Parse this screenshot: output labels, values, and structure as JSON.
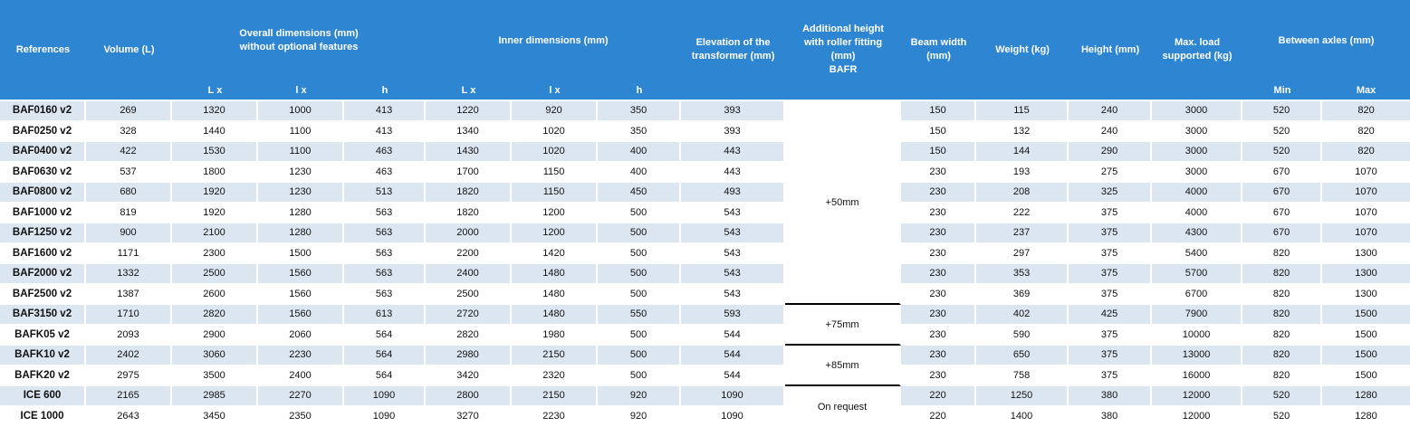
{
  "colors": {
    "header_bg": "#2E86D2",
    "stripe_row": "#DCE6F1",
    "plain_row": "#FFFFFF",
    "header_text": "#FFFFFF",
    "body_text": "#111111",
    "group_divider": "#000000"
  },
  "header": {
    "references": "References",
    "volume": "Volume (L)",
    "overall_dimensions": {
      "line1": "Overall dimensions (mm)",
      "line2": "without optional features"
    },
    "inner_dimensions": "Inner dimensions (mm)",
    "elevation": {
      "line1": "Elevation of the",
      "line2": "transformer (mm)"
    },
    "additional_height": {
      "line1": "Additional height",
      "line2": "with roller fitting",
      "line3": "(mm)",
      "line4": "BAFR"
    },
    "beam_width": {
      "line1": "Beam width",
      "line2": "(mm)"
    },
    "weight": "Weight (kg)",
    "height": "Height (mm)",
    "max_load": {
      "line1": "Max. load",
      "line2": "supported (kg)"
    },
    "between_axles": "Between axles (mm)",
    "sub_headers": {
      "overall_L": "L x",
      "overall_l": "l x",
      "overall_h": "h",
      "inner_L": "L x",
      "inner_l": "l x",
      "inner_h": "h",
      "min": "Min",
      "max": "Max"
    }
  },
  "value_column_keys": [
    "volume",
    "overall-L",
    "overall-l",
    "overall-h",
    "inner-L",
    "inner-l",
    "inner-h",
    "elevation",
    "beam-width",
    "weight",
    "height",
    "max-load",
    "axle-min",
    "axle-max"
  ],
  "rows": [
    {
      "reference": "BAF0160 v2",
      "values": [
        "269",
        "1320",
        "1000",
        "413",
        "1220",
        "920",
        "350",
        "393",
        "150",
        "115",
        "240",
        "3000",
        "520",
        "820"
      ]
    },
    {
      "reference": "BAF0250 v2",
      "values": [
        "328",
        "1440",
        "1100",
        "413",
        "1340",
        "1020",
        "350",
        "393",
        "150",
        "132",
        "240",
        "3000",
        "520",
        "820"
      ]
    },
    {
      "reference": "BAF0400 v2",
      "values": [
        "422",
        "1530",
        "1100",
        "463",
        "1430",
        "1020",
        "400",
        "443",
        "150",
        "144",
        "290",
        "3000",
        "520",
        "820"
      ]
    },
    {
      "reference": "BAF0630 v2",
      "values": [
        "537",
        "1800",
        "1230",
        "463",
        "1700",
        "1150",
        "400",
        "443",
        "230",
        "193",
        "275",
        "3000",
        "670",
        "1070"
      ]
    },
    {
      "reference": "BAF0800 v2",
      "values": [
        "680",
        "1920",
        "1230",
        "513",
        "1820",
        "1150",
        "450",
        "493",
        "230",
        "208",
        "325",
        "4000",
        "670",
        "1070"
      ]
    },
    {
      "reference": "BAF1000 v2",
      "values": [
        "819",
        "1920",
        "1280",
        "563",
        "1820",
        "1200",
        "500",
        "543",
        "230",
        "222",
        "375",
        "4000",
        "670",
        "1070"
      ]
    },
    {
      "reference": "BAF1250 v2",
      "values": [
        "900",
        "2100",
        "1280",
        "563",
        "2000",
        "1200",
        "500",
        "543",
        "230",
        "237",
        "375",
        "4300",
        "670",
        "1070"
      ]
    },
    {
      "reference": "BAF1600 v2",
      "values": [
        "1171",
        "2300",
        "1500",
        "563",
        "2200",
        "1420",
        "500",
        "543",
        "230",
        "297",
        "375",
        "5400",
        "820",
        "1300"
      ]
    },
    {
      "reference": "BAF2000 v2",
      "values": [
        "1332",
        "2500",
        "1560",
        "563",
        "2400",
        "1480",
        "500",
        "543",
        "230",
        "353",
        "375",
        "5700",
        "820",
        "1300"
      ]
    },
    {
      "reference": "BAF2500 v2",
      "values": [
        "1387",
        "2600",
        "1560",
        "563",
        "2500",
        "1480",
        "500",
        "543",
        "230",
        "369",
        "375",
        "6700",
        "820",
        "1300"
      ]
    },
    {
      "reference": "BAF3150 v2",
      "values": [
        "1710",
        "2820",
        "1560",
        "613",
        "2720",
        "1480",
        "550",
        "593",
        "230",
        "402",
        "425",
        "7900",
        "820",
        "1500"
      ]
    },
    {
      "reference": "BAFK05 v2",
      "values": [
        "2093",
        "2900",
        "2060",
        "564",
        "2820",
        "1980",
        "500",
        "544",
        "230",
        "590",
        "375",
        "10000",
        "820",
        "1500"
      ]
    },
    {
      "reference": "BAFK10 v2",
      "values": [
        "2402",
        "3060",
        "2230",
        "564",
        "2980",
        "2150",
        "500",
        "544",
        "230",
        "650",
        "375",
        "13000",
        "820",
        "1500"
      ]
    },
    {
      "reference": "BAFK20 v2",
      "values": [
        "2975",
        "3500",
        "2400",
        "564",
        "3420",
        "2320",
        "500",
        "544",
        "230",
        "758",
        "375",
        "16000",
        "820",
        "1500"
      ]
    },
    {
      "reference": "ICE 600",
      "values": [
        "2165",
        "2985",
        "2270",
        "1090",
        "2800",
        "2150",
        "920",
        "1090",
        "220",
        "1250",
        "380",
        "12000",
        "520",
        "1280"
      ]
    },
    {
      "reference": "ICE 1000",
      "values": [
        "2643",
        "3450",
        "2350",
        "1090",
        "3270",
        "2230",
        "920",
        "1090",
        "220",
        "1400",
        "380",
        "12000",
        "520",
        "1280"
      ]
    }
  ],
  "roller_fitting_groups": [
    {
      "label": "+50mm",
      "row_span": 10
    },
    {
      "label": "+75mm",
      "row_span": 2
    },
    {
      "label": "+85mm",
      "row_span": 2
    },
    {
      "label": "On request",
      "row_span": 2
    }
  ]
}
